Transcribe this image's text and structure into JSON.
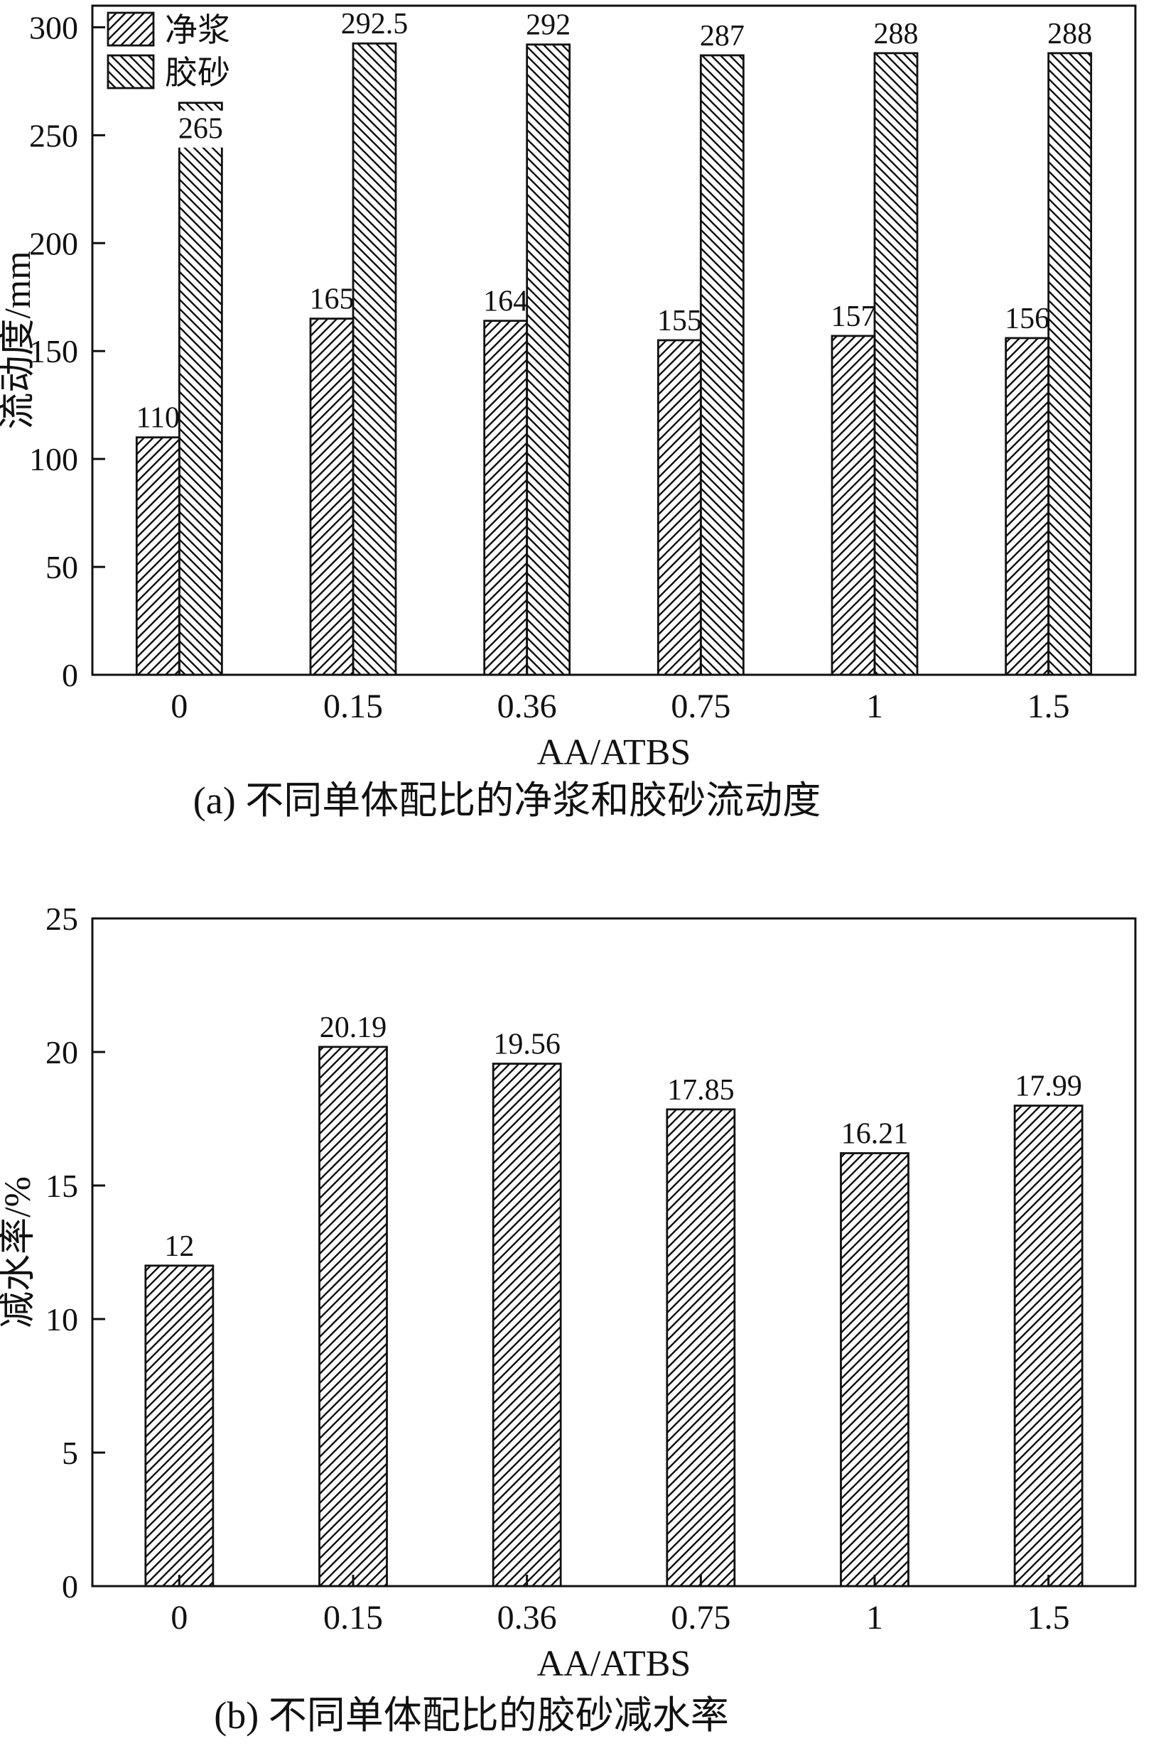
{
  "colors": {
    "ink": "#111111",
    "background": "#ffffff",
    "label_mask": "#ffffff"
  },
  "chart_data": [
    {
      "id": "chart-a",
      "type": "bar",
      "title": "(a) 不同单体配比的净浆和胶砂流动度",
      "xlabel": "AA/ATBS",
      "ylabel": "流动度/mm",
      "categories": [
        "0",
        "0.15",
        "0.36",
        "0.75",
        "1",
        "1.5"
      ],
      "series": [
        {
          "name": "净浆",
          "hatch": "fwd",
          "values": [
            110,
            165,
            164,
            155,
            157,
            156
          ],
          "labels": [
            "110",
            "165",
            "164",
            "155",
            "157",
            "156"
          ],
          "label_pos": [
            "above",
            "above",
            "above",
            "above",
            "above",
            "above"
          ]
        },
        {
          "name": "胶砂",
          "hatch": "bwd",
          "values": [
            265,
            292.5,
            292,
            287,
            288,
            288
          ],
          "labels": [
            "265",
            "292.5",
            "292",
            "287",
            "288",
            "288"
          ],
          "label_pos": [
            "inside",
            "above",
            "above",
            "above",
            "above",
            "above"
          ]
        }
      ],
      "ylim": [
        0,
        300
      ],
      "yticks": [
        0,
        50,
        100,
        150,
        200,
        250,
        300
      ],
      "legend_position": "upper-left",
      "grid": false
    },
    {
      "id": "chart-b",
      "type": "bar",
      "title": "(b) 不同单体配比的胶砂减水率",
      "xlabel": "AA/ATBS",
      "ylabel": "减水率/%",
      "categories": [
        "0",
        "0.15",
        "0.36",
        "0.75",
        "1",
        "1.5"
      ],
      "series": [
        {
          "name": "减水率",
          "hatch": "fwd",
          "values": [
            12,
            20.19,
            19.56,
            17.85,
            16.21,
            17.99
          ],
          "labels": [
            "12",
            "20.19",
            "19.56",
            "17.85",
            "16.21",
            "17.99"
          ],
          "label_pos": [
            "above",
            "above",
            "above",
            "above",
            "above",
            "above"
          ]
        }
      ],
      "ylim": [
        0,
        25
      ],
      "yticks": [
        0,
        5,
        10,
        15,
        20,
        25
      ],
      "legend_position": "none",
      "grid": false
    }
  ]
}
